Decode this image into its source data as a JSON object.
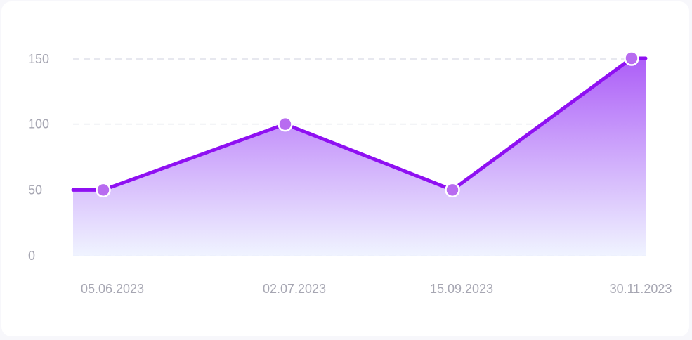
{
  "chart_data": {
    "type": "area",
    "x": [
      "05.06.2023",
      "02.07.2023",
      "15.09.2023",
      "30.11.2023"
    ],
    "y_ticks": [
      0,
      50,
      100,
      150
    ],
    "ylim": [
      0,
      150
    ],
    "grid": true,
    "series": [
      {
        "values": [
          50,
          100,
          50,
          150
        ]
      }
    ],
    "colors": {
      "line": "#8f10f2",
      "point": "#b86cf0",
      "fill_top": "#a855f7",
      "fill_bottom": "#eef2ff"
    }
  }
}
